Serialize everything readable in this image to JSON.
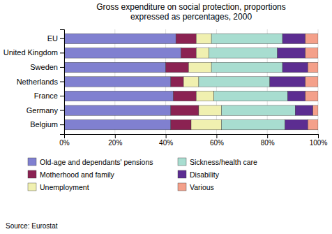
{
  "chart_data": {
    "type": "bar",
    "orientation": "horizontal",
    "stacked": true,
    "title": "Gross expenditure on social protection, proportions\nexpressed as percentages, 2000",
    "categories": [
      "EU",
      "United Kingdom",
      "Sweden",
      "Netherlands",
      "France",
      "Germany",
      "Belgium"
    ],
    "series": [
      {
        "name": "Old-age and dependants' pensions",
        "color": "#8080d0",
        "values": [
          44,
          46,
          40,
          42,
          43,
          42,
          42
        ]
      },
      {
        "name": "Motherhood and family",
        "color": "#8b2252",
        "values": [
          8,
          6,
          9,
          5,
          9,
          11,
          8
        ]
      },
      {
        "name": "Unemployment",
        "color": "#f0f0b0",
        "values": [
          6,
          5,
          9,
          6,
          7,
          9,
          12
        ]
      },
      {
        "name": "Sickness/health care",
        "color": "#a8ddd0",
        "values": [
          28,
          27,
          28,
          28,
          29,
          29,
          25
        ]
      },
      {
        "name": "Disability",
        "color": "#5c2d91",
        "values": [
          9,
          11,
          10,
          14,
          7,
          7,
          9
        ]
      },
      {
        "name": "Various",
        "color": "#f4a08a",
        "values": [
          5,
          5,
          4,
          5,
          5,
          2,
          4
        ]
      }
    ],
    "xlim": [
      0,
      100
    ],
    "xticks": [
      {
        "value": 0,
        "label": "0%"
      },
      {
        "value": 20,
        "label": "20%"
      },
      {
        "value": 40,
        "label": "40%"
      },
      {
        "value": 60,
        "label": "60%"
      },
      {
        "value": 80,
        "label": "80%"
      },
      {
        "value": 100,
        "label": "100%"
      }
    ],
    "grid": true,
    "legend": "bottom",
    "annotations": [
      "Source: Eurostat"
    ]
  }
}
